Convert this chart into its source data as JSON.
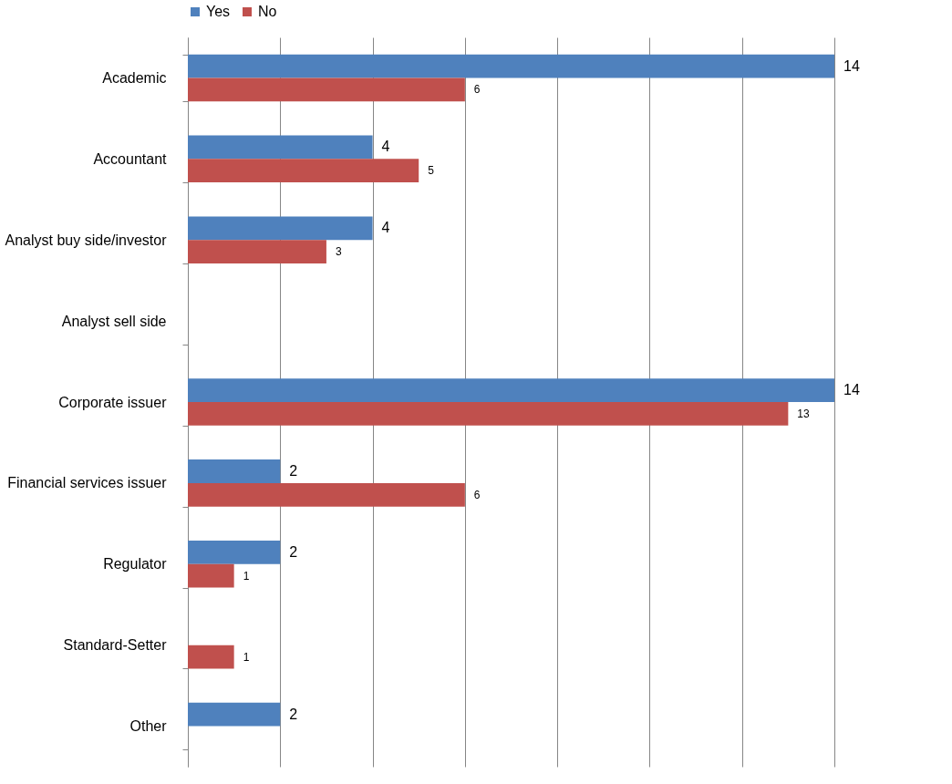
{
  "chart_data": {
    "type": "bar",
    "orientation": "horizontal",
    "categories": [
      "Academic",
      "Accountant",
      "Analyst buy side/investor",
      "Analyst sell side",
      "Corporate issuer",
      "Financial services issuer",
      "Regulator",
      "Standard-Setter",
      "Other"
    ],
    "series": [
      {
        "name": "Yes",
        "color": "#4f81bd",
        "values": [
          14,
          4,
          4,
          null,
          14,
          2,
          2,
          null,
          2
        ]
      },
      {
        "name": "No",
        "color": "#c0504d",
        "values": [
          6,
          5,
          3,
          null,
          13,
          6,
          1,
          1,
          null
        ]
      }
    ],
    "xlim": [
      0,
      14
    ],
    "xticks": [
      {
        "value": 0,
        "label": null
      },
      {
        "value": 2,
        "label": null
      },
      {
        "value": 4,
        "label": null
      },
      {
        "value": 6,
        "label": null
      },
      {
        "value": 8,
        "label": null
      },
      {
        "value": 10,
        "label": null
      },
      {
        "value": 12,
        "label": null
      },
      {
        "value": 14,
        "label": null
      }
    ],
    "tick_labels": "y",
    "grid": "x",
    "legend": "top",
    "data_labels": true
  }
}
